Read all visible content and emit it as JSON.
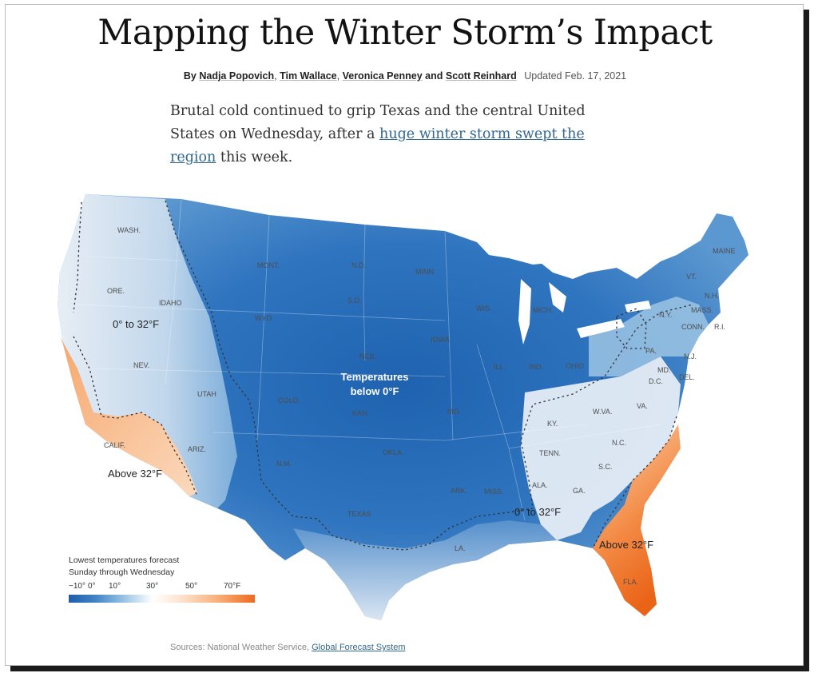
{
  "headline": "Mapping the Winter Storm’s Impact",
  "byline": {
    "prefix": "By",
    "authors": [
      "Nadja Popovich",
      "Tim Wallace",
      "Veronica Penney"
    ],
    "and": "and",
    "last_author": "Scott Reinhard",
    "updated": "Updated Feb. 17, 2021"
  },
  "lede": {
    "before": "Brutal cold continued to grip Texas and the central United States on Wednesday, after a",
    "link": "huge winter storm swept the region",
    "after": "this week."
  },
  "map": {
    "zone_labels": {
      "west_mid": "0° to 32°F",
      "cold_core_1": "Temperatures",
      "cold_core_2": "below 0°F",
      "southwest_warm": "Above 32°F",
      "southeast_mid": "0° to 32°F",
      "florida_warm": "Above 32°F"
    },
    "states": {
      "wash": "WASH.",
      "ore": "ORE.",
      "idaho": "IDAHO",
      "mont": "MONT.",
      "wyo": "WYO",
      "nev": "NEV.",
      "utah": "UTAH",
      "calif": "CALIF.",
      "ariz": "ARIZ.",
      "colo": "COLO.",
      "nm": "N.M.",
      "nd": "N.D.",
      "sd": "S.D.",
      "neb": "NEB.",
      "kan": "KAN.",
      "okla": "OKLA.",
      "texas": "TEXAS",
      "minn": "MINN.",
      "iowa": "IOWA",
      "mo": "MO.",
      "ark": "ARK.",
      "la": "LA.",
      "wis": "WIS.",
      "ill": "ILL.",
      "mich": "MICH.",
      "ind": "IND.",
      "ohio": "OHIO",
      "ky": "KY.",
      "tenn": "TENN.",
      "miss": "MISS.",
      "ala": "ALA.",
      "ga": "GA.",
      "fla": "FLA.",
      "sc": "S.C.",
      "nc": "N.C.",
      "va": "VA.",
      "wva": "W.VA.",
      "pa": "PA.",
      "ny": "N.Y.",
      "vt": "VT.",
      "nh": "N.H.",
      "maine": "MAINE",
      "mass": "MASS.",
      "conn": "CONN.",
      "ri": "R.I.",
      "nj": "N.J.",
      "md": "MD.",
      "del": "DEL.",
      "dc": "D.C."
    },
    "colors": {
      "deep_cold": "#2a6cb6",
      "cold": "#4d8ccb",
      "cool": "#9cc4e4",
      "neutral": "#f3f5f8",
      "warm": "#f7c9a2",
      "hot": "#ee7325"
    }
  },
  "legend": {
    "title_1": "Lowest temperatures forecast",
    "title_2": "Sunday through Wednesday",
    "ticks": [
      "−10°",
      "0°",
      "10°",
      "30°",
      "50°",
      "70°F"
    ]
  },
  "sources": {
    "prefix": "Sources: National Weather Service,",
    "link": "Global Forecast System"
  }
}
